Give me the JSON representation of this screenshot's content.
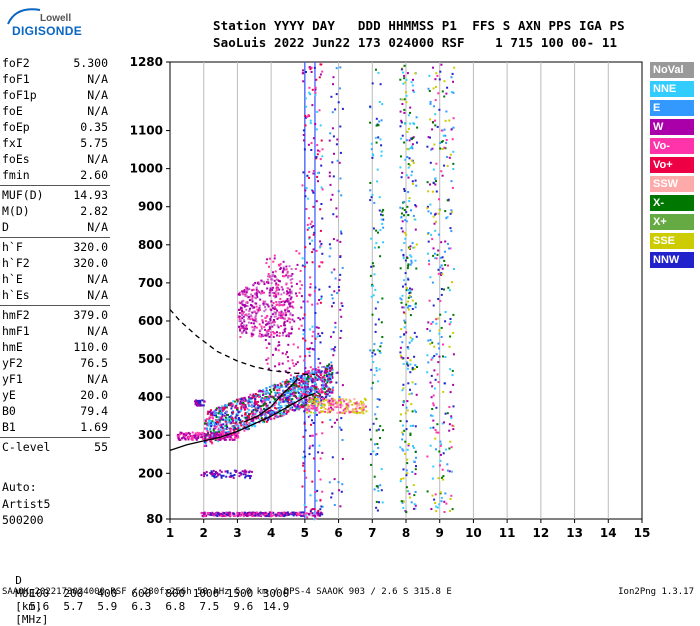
{
  "logo": {
    "top": "Lowell",
    "main": "DIGISONDE"
  },
  "header": {
    "line1": "Station YYYY DAY   DDD HHMMSS P1  FFS S AXN PPS IGA PS",
    "line2": "SaoLuis 2022 Jun22 173 024000 RSF    1 715 100 00- 11"
  },
  "params": [
    {
      "group": [
        {
          "name": "foF2",
          "value": "5.300"
        },
        {
          "name": "foF1",
          "value": "N/A"
        },
        {
          "name": "foF1p",
          "value": "N/A"
        },
        {
          "name": "foE",
          "value": "N/A"
        },
        {
          "name": "foEp",
          "value": "0.35"
        },
        {
          "name": "fxI",
          "value": "5.75"
        },
        {
          "name": "foEs",
          "value": "N/A"
        },
        {
          "name": "fmin",
          "value": "2.60"
        }
      ]
    },
    {
      "group": [
        {
          "name": "MUF(D)",
          "value": "14.93"
        },
        {
          "name": "M(D)",
          "value": "2.82"
        },
        {
          "name": "D",
          "value": "N/A"
        }
      ]
    },
    {
      "group": [
        {
          "name": "h`F",
          "value": "320.0"
        },
        {
          "name": "h`F2",
          "value": "320.0"
        },
        {
          "name": "h`E",
          "value": "N/A"
        },
        {
          "name": "h`Es",
          "value": "N/A"
        }
      ]
    },
    {
      "group": [
        {
          "name": "hmF2",
          "value": "379.0"
        },
        {
          "name": "hmF1",
          "value": "N/A"
        },
        {
          "name": "hmE",
          "value": "110.0"
        },
        {
          "name": "yF2",
          "value": "76.5"
        },
        {
          "name": "yF1",
          "value": "N/A"
        },
        {
          "name": "yE",
          "value": "20.0"
        },
        {
          "name": "B0",
          "value": "79.4"
        },
        {
          "name": "B1",
          "value": "1.69"
        }
      ]
    },
    {
      "group": [
        {
          "name": "C-level",
          "value": "55"
        }
      ]
    }
  ],
  "auto": {
    "line1": "Auto:",
    "line2": "Artist5",
    "line3": "500200"
  },
  "legend": [
    {
      "label": "NoVal",
      "color": "#999999"
    },
    {
      "label": "NNE",
      "color": "#33ccff"
    },
    {
      "label": "E",
      "color": "#3399ff"
    },
    {
      "label": "W",
      "color": "#aa00aa"
    },
    {
      "label": "Vo-",
      "color": "#ff33aa"
    },
    {
      "label": "Vo+",
      "color": "#ee0044"
    },
    {
      "label": "SSW",
      "color": "#ffaaaa"
    },
    {
      "label": "X-",
      "color": "#007700"
    },
    {
      "label": "X+",
      "color": "#66aa44"
    },
    {
      "label": "SSE",
      "color": "#cccc00"
    },
    {
      "label": "NNW",
      "color": "#2222cc"
    }
  ],
  "muf_table": {
    "d_label": "D",
    "d_values": [
      "100",
      "200",
      "400",
      "600",
      "800",
      "1000",
      "1500",
      "3000"
    ],
    "d_unit": "[km]",
    "muf_label": "MUF",
    "muf_values": [
      "5.6",
      "5.7",
      "5.9",
      "6.3",
      "6.8",
      "7.5",
      "9.6",
      "14.9"
    ],
    "muf_unit": "[MHz]"
  },
  "footer": {
    "info": "SAAOK_2022173024000.RSF / 280fx256h 50 kHz 5.0 km / DPS-4 SAAOK 903 / 2.6 S 315.8 E",
    "version": "Ion2Png 1.3.17"
  },
  "chart_data": {
    "type": "scatter",
    "title": "",
    "xlabel": "",
    "ylabel": "",
    "xlim": [
      1,
      15
    ],
    "ylim": [
      80,
      1280
    ],
    "x_ticks": [
      1,
      2,
      3,
      4,
      5,
      6,
      7,
      8,
      9,
      10,
      11,
      12,
      13,
      14,
      15
    ],
    "y_ticks": [
      80,
      200,
      300,
      400,
      500,
      600,
      700,
      800,
      900,
      1000,
      1100,
      1280
    ],
    "grid": "vertical",
    "blue_verticals": [
      5.0,
      5.3
    ],
    "clusters": [
      {
        "label": "F-trace",
        "x": [
          2.0,
          5.8
        ],
        "y": [
          290,
          470
        ],
        "n": 1300,
        "colors": [
          "#aa00aa",
          "#ff33aa",
          "#3399ff",
          "#2222cc",
          "#007700",
          "#ee0044",
          "#33ccff"
        ]
      },
      {
        "label": "F-trace-lower",
        "x": [
          1.2,
          3.0
        ],
        "y": [
          290,
          310
        ],
        "n": 180,
        "colors": [
          "#aa00aa",
          "#ff33aa"
        ]
      },
      {
        "label": "Es-tail",
        "x": [
          5.0,
          6.8
        ],
        "y": [
          360,
          400
        ],
        "n": 200,
        "colors": [
          "#ffaaaa",
          "#ff33aa",
          "#cccc00"
        ]
      },
      {
        "label": "multi-hop",
        "x": [
          3.0,
          4.6
        ],
        "y": [
          560,
          760
        ],
        "n": 420,
        "colors": [
          "#aa00aa",
          "#ff33aa",
          "#cc66cc"
        ]
      },
      {
        "label": "upper-streak",
        "x": [
          3.8,
          4.9
        ],
        "y": [
          460,
          790
        ],
        "n": 130,
        "colors": [
          "#aa00aa",
          "#ff33aa"
        ]
      },
      {
        "label": "bottom-echoes",
        "x": [
          1.9,
          5.5
        ],
        "y": [
          90,
          100
        ],
        "n": 300,
        "colors": [
          "#2222cc",
          "#aa00aa",
          "#ff33aa"
        ]
      },
      {
        "label": "low-spread",
        "x": [
          1.9,
          3.4
        ],
        "y": [
          190,
          210
        ],
        "n": 70,
        "colors": [
          "#2222cc",
          "#aa00aa"
        ]
      },
      {
        "label": "small-left",
        "x": [
          1.7,
          2.0
        ],
        "y": [
          380,
          395
        ],
        "n": 30,
        "colors": [
          "#2222cc",
          "#aa00aa"
        ]
      },
      {
        "label": "col-5",
        "x": [
          4.9,
          5.5
        ],
        "y": [
          80,
          1280
        ],
        "n": 260,
        "colors": [
          "#2222cc",
          "#aa00aa",
          "#ff33aa",
          "#ee0044",
          "#33ccff"
        ]
      },
      {
        "label": "col-5.8",
        "x": [
          5.7,
          6.1
        ],
        "y": [
          100,
          1280
        ],
        "n": 110,
        "colors": [
          "#2222cc",
          "#3399ff",
          "#aa00aa"
        ]
      },
      {
        "label": "col-7",
        "x": [
          6.9,
          7.3
        ],
        "y": [
          100,
          1280
        ],
        "n": 130,
        "colors": [
          "#2222cc",
          "#3399ff",
          "#33ccff",
          "#007700"
        ]
      },
      {
        "label": "col-8",
        "x": [
          7.8,
          8.3
        ],
        "y": [
          100,
          1280
        ],
        "n": 300,
        "colors": [
          "#2222cc",
          "#3399ff",
          "#33ccff",
          "#aa00aa",
          "#007700",
          "#cccc00"
        ]
      },
      {
        "label": "col-8.8",
        "x": [
          8.6,
          9.4
        ],
        "y": [
          100,
          1280
        ],
        "n": 300,
        "colors": [
          "#2222cc",
          "#3399ff",
          "#33ccff",
          "#aa00aa",
          "#007700",
          "#cccc00",
          "#ff33aa"
        ]
      }
    ],
    "curves": [
      {
        "name": "profile",
        "style": "solid",
        "x": [
          1.0,
          1.5,
          2.0,
          2.5,
          3.0,
          3.5,
          4.0,
          4.5,
          5.0,
          5.3
        ],
        "y": [
          260,
          275,
          285,
          295,
          310,
          330,
          350,
          375,
          400,
          410
        ]
      },
      {
        "name": "profile-upper",
        "style": "solid",
        "x": [
          3.2,
          3.6,
          4.0,
          4.3,
          4.6,
          4.8
        ],
        "y": [
          335,
          350,
          375,
          405,
          430,
          450
        ]
      },
      {
        "name": "dashed",
        "style": "dashed",
        "x": [
          1.0,
          1.3,
          1.8,
          2.4,
          3.0,
          3.5,
          4.0,
          4.5,
          5.0,
          5.3
        ],
        "y": [
          630,
          600,
          560,
          520,
          495,
          480,
          470,
          465,
          460,
          460
        ]
      }
    ]
  }
}
